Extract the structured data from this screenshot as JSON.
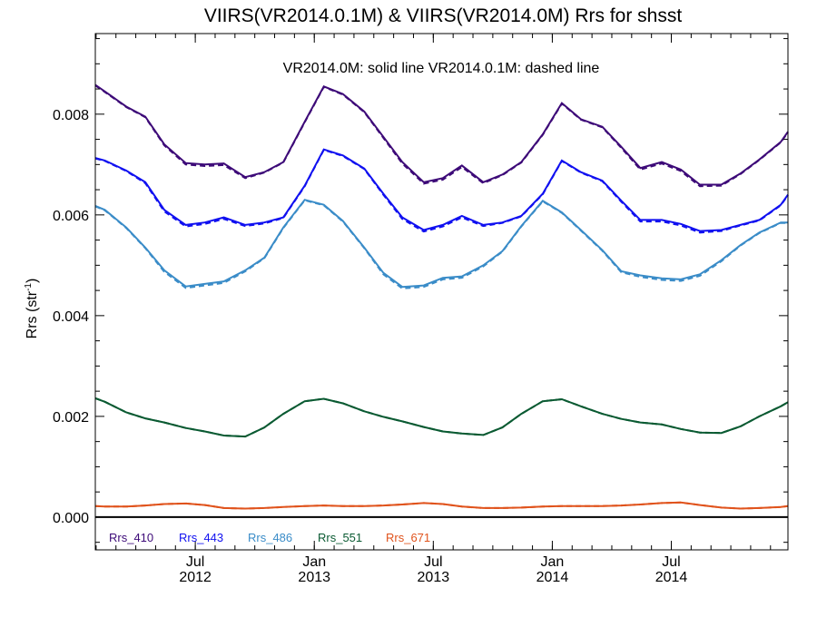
{
  "chart_data": {
    "type": "line",
    "title": "VIIRS(VR2014.0.1M) & VIIRS(VR2014.0M)  Rrs for shsst",
    "ylabel": "Rrs (str",
    "ylabel_sup": "-1",
    "ylabel_close": ")",
    "annotation": "VR2014.0M: solid line   VR2014.0.1M: dashed line",
    "ylim": [
      -0.00065,
      0.0096
    ],
    "xlim": [
      2012.08,
      2014.99
    ],
    "zero_line": 0.0,
    "grid": false,
    "legend_placement": "bottom-left",
    "y_ticks": [
      {
        "value": 0.0,
        "label": "0.000"
      },
      {
        "value": 0.002,
        "label": "0.002"
      },
      {
        "value": 0.004,
        "label": "0.004"
      },
      {
        "value": 0.006,
        "label": "0.006"
      },
      {
        "value": 0.008,
        "label": "0.008"
      }
    ],
    "x_ticks": [
      {
        "value": 2012.5,
        "line1": "Jul",
        "line2": "2012"
      },
      {
        "value": 2013.0,
        "line1": "Jan",
        "line2": "2013"
      },
      {
        "value": 2013.5,
        "line1": "Jul",
        "line2": "2013"
      },
      {
        "value": 2014.0,
        "line1": "Jan",
        "line2": "2014"
      },
      {
        "value": 2014.5,
        "line1": "Jul",
        "line2": "2014"
      }
    ],
    "x": [
      2012.08,
      2012.12,
      2012.21,
      2012.29,
      2012.37,
      2012.46,
      2012.54,
      2012.62,
      2012.71,
      2012.79,
      2012.87,
      2012.96,
      2013.04,
      2013.12,
      2013.21,
      2013.29,
      2013.37,
      2013.46,
      2013.54,
      2013.62,
      2013.71,
      2013.79,
      2013.87,
      2013.96,
      2014.04,
      2014.12,
      2014.21,
      2014.29,
      2014.37,
      2014.46,
      2014.54,
      2014.62,
      2014.71,
      2014.79,
      2014.87,
      2014.96,
      2014.99
    ],
    "series": [
      {
        "name": "Rrs_410",
        "color": "#3d0a78",
        "solid": [
          0.00858,
          0.00845,
          0.00815,
          0.00795,
          0.0074,
          0.00703,
          0.007,
          0.00702,
          0.00675,
          0.00685,
          0.00705,
          0.00785,
          0.00855,
          0.0084,
          0.00805,
          0.00755,
          0.00705,
          0.00665,
          0.00673,
          0.00698,
          0.00665,
          0.0068,
          0.00705,
          0.0076,
          0.00822,
          0.0079,
          0.00775,
          0.00735,
          0.00693,
          0.00705,
          0.0069,
          0.0066,
          0.0066,
          0.00682,
          0.0071,
          0.00745,
          0.00765
        ],
        "dashed": [
          0.00857,
          0.00844,
          0.00814,
          0.00794,
          0.00738,
          0.007,
          0.00697,
          0.00699,
          0.00673,
          0.00684,
          0.00704,
          0.00784,
          0.00854,
          0.00839,
          0.00804,
          0.00753,
          0.00702,
          0.00662,
          0.0067,
          0.00695,
          0.00663,
          0.00679,
          0.00704,
          0.00759,
          0.00821,
          0.00789,
          0.00774,
          0.00733,
          0.0069,
          0.00702,
          0.00687,
          0.00657,
          0.00658,
          0.00681,
          0.00709,
          0.00744,
          0.00764
        ]
      },
      {
        "name": "Rrs_443",
        "color": "#1010f0",
        "solid": [
          0.00713,
          0.00708,
          0.00688,
          0.00665,
          0.0061,
          0.0058,
          0.00585,
          0.00595,
          0.0058,
          0.00585,
          0.00595,
          0.00658,
          0.0073,
          0.00718,
          0.00692,
          0.00642,
          0.00595,
          0.0057,
          0.0058,
          0.00598,
          0.0058,
          0.00585,
          0.00598,
          0.00642,
          0.00708,
          0.00685,
          0.00668,
          0.00628,
          0.0059,
          0.0059,
          0.00582,
          0.00568,
          0.0057,
          0.0058,
          0.0059,
          0.0062,
          0.0064
        ],
        "dashed": [
          0.00712,
          0.00707,
          0.00687,
          0.00663,
          0.00607,
          0.00577,
          0.00582,
          0.00592,
          0.00578,
          0.00583,
          0.00594,
          0.00657,
          0.00729,
          0.00717,
          0.00691,
          0.0064,
          0.00592,
          0.00567,
          0.00577,
          0.00595,
          0.00578,
          0.00584,
          0.00597,
          0.00641,
          0.00707,
          0.00684,
          0.00667,
          0.00626,
          0.00587,
          0.00587,
          0.00579,
          0.00565,
          0.00568,
          0.00579,
          0.00589,
          0.00619,
          0.00639
        ]
      },
      {
        "name": "Rrs_486",
        "color": "#3a8cc8",
        "solid": [
          0.00618,
          0.0061,
          0.00575,
          0.00535,
          0.0049,
          0.00458,
          0.00463,
          0.00468,
          0.0049,
          0.00515,
          0.00575,
          0.0063,
          0.0062,
          0.00588,
          0.00535,
          0.00485,
          0.00457,
          0.0046,
          0.00475,
          0.00478,
          0.005,
          0.00528,
          0.00578,
          0.00628,
          0.00605,
          0.0057,
          0.0053,
          0.00488,
          0.0048,
          0.00474,
          0.00472,
          0.00482,
          0.0051,
          0.0054,
          0.00565,
          0.00585,
          0.00585
        ],
        "dashed": [
          0.00617,
          0.00609,
          0.00574,
          0.00534,
          0.00487,
          0.00455,
          0.0046,
          0.00465,
          0.00488,
          0.00514,
          0.00574,
          0.00629,
          0.00619,
          0.00587,
          0.00534,
          0.00482,
          0.00454,
          0.00457,
          0.00472,
          0.00475,
          0.00498,
          0.00527,
          0.00577,
          0.00627,
          0.00604,
          0.00569,
          0.00529,
          0.00486,
          0.00477,
          0.00471,
          0.00469,
          0.00479,
          0.00508,
          0.00539,
          0.00564,
          0.00584,
          0.00584
        ]
      },
      {
        "name": "Rrs_551",
        "color": "#0a5a32",
        "solid": [
          0.00236,
          0.00229,
          0.00208,
          0.00196,
          0.00188,
          0.00177,
          0.0017,
          0.00162,
          0.0016,
          0.00178,
          0.00205,
          0.0023,
          0.00235,
          0.00226,
          0.0021,
          0.00199,
          0.0019,
          0.00179,
          0.0017,
          0.00166,
          0.00163,
          0.00178,
          0.00205,
          0.0023,
          0.00234,
          0.0022,
          0.00205,
          0.00195,
          0.00188,
          0.00184,
          0.00175,
          0.00168,
          0.00167,
          0.0018,
          0.002,
          0.0022,
          0.00228
        ],
        "dashed": [
          0.00236,
          0.00229,
          0.00208,
          0.00196,
          0.00188,
          0.00177,
          0.0017,
          0.00162,
          0.0016,
          0.00178,
          0.00205,
          0.0023,
          0.00235,
          0.00226,
          0.0021,
          0.00199,
          0.0019,
          0.00179,
          0.0017,
          0.00166,
          0.00163,
          0.00178,
          0.00205,
          0.0023,
          0.00234,
          0.0022,
          0.00205,
          0.00195,
          0.00188,
          0.00184,
          0.00175,
          0.00168,
          0.00167,
          0.0018,
          0.002,
          0.0022,
          0.00228
        ]
      },
      {
        "name": "Rrs_671",
        "color": "#e0531c",
        "solid": [
          0.00022,
          0.00021,
          0.00021,
          0.00023,
          0.00026,
          0.00027,
          0.00024,
          0.00018,
          0.00017,
          0.00018,
          0.0002,
          0.00022,
          0.00023,
          0.00022,
          0.00022,
          0.00023,
          0.00025,
          0.00028,
          0.00026,
          0.00021,
          0.00018,
          0.00018,
          0.00019,
          0.00021,
          0.00022,
          0.00022,
          0.00022,
          0.00023,
          0.00025,
          0.00028,
          0.00029,
          0.00024,
          0.00019,
          0.00017,
          0.00018,
          0.0002,
          0.00022
        ],
        "dashed": [
          0.00022,
          0.00021,
          0.00021,
          0.00023,
          0.00026,
          0.00027,
          0.00024,
          0.00018,
          0.00017,
          0.00018,
          0.0002,
          0.00022,
          0.00023,
          0.00022,
          0.00022,
          0.00023,
          0.00025,
          0.00028,
          0.00026,
          0.00021,
          0.00018,
          0.00018,
          0.00019,
          0.00021,
          0.00022,
          0.00022,
          0.00022,
          0.00023,
          0.00025,
          0.00028,
          0.00029,
          0.00024,
          0.00019,
          0.00017,
          0.00018,
          0.0002,
          0.00022
        ]
      }
    ]
  }
}
